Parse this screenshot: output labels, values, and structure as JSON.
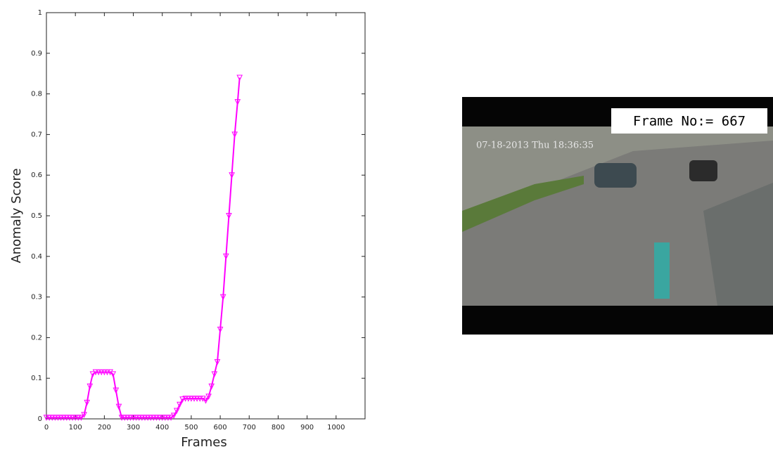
{
  "chart_data": {
    "type": "line",
    "xlabel": "Frames",
    "ylabel": "Anomaly Score",
    "x": [
      0,
      10,
      20,
      30,
      40,
      50,
      60,
      70,
      80,
      90,
      100,
      110,
      120,
      130,
      140,
      150,
      160,
      170,
      180,
      190,
      200,
      210,
      220,
      230,
      240,
      250,
      260,
      270,
      280,
      290,
      300,
      310,
      320,
      330,
      340,
      350,
      360,
      370,
      380,
      390,
      400,
      410,
      420,
      430,
      440,
      450,
      460,
      470,
      480,
      490,
      500,
      510,
      520,
      530,
      540,
      550,
      560,
      570,
      580,
      590,
      600,
      610,
      620,
      630,
      640,
      650,
      660,
      667
    ],
    "series": [
      {
        "name": "Anomaly Score",
        "color": "#ff00ff",
        "values": [
          0.003,
          0.003,
          0.003,
          0.003,
          0.003,
          0.003,
          0.003,
          0.003,
          0.003,
          0.003,
          0.003,
          0.003,
          0.003,
          0.01,
          0.04,
          0.08,
          0.11,
          0.115,
          0.115,
          0.115,
          0.115,
          0.115,
          0.115,
          0.11,
          0.07,
          0.03,
          0.003,
          0.003,
          0.003,
          0.003,
          0.003,
          0.003,
          0.003,
          0.003,
          0.003,
          0.003,
          0.003,
          0.003,
          0.003,
          0.003,
          0.003,
          0.003,
          0.003,
          0.003,
          0.008,
          0.02,
          0.035,
          0.048,
          0.05,
          0.05,
          0.05,
          0.05,
          0.05,
          0.05,
          0.05,
          0.045,
          0.055,
          0.08,
          0.11,
          0.14,
          0.22,
          0.3,
          0.4,
          0.5,
          0.6,
          0.7,
          0.78,
          0.84
        ]
      }
    ],
    "xlim": [
      0,
      1100
    ],
    "xticks": [
      0,
      100,
      200,
      300,
      400,
      500,
      600,
      700,
      800,
      900,
      1000
    ],
    "ylim": [
      0,
      1
    ],
    "yticks": [
      0,
      0.1,
      0.2,
      0.3,
      0.4,
      0.5,
      0.6,
      0.7,
      0.8,
      0.9,
      1
    ]
  },
  "video_frame": {
    "frame_label": "Frame No:= 667",
    "timestamp": "07-18-2013 Thu 18:36:35"
  }
}
